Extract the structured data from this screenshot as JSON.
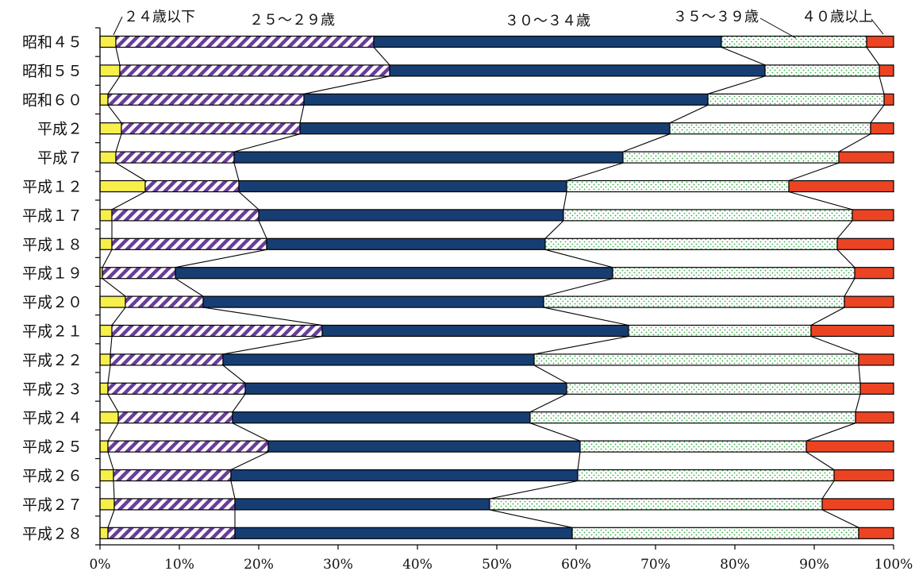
{
  "chart_data": {
    "type": "bar",
    "orientation": "horizontal",
    "stacked": "percent",
    "categories": [
      "昭和４５",
      "昭和５５",
      "昭和６０",
      "平成２",
      "平成７",
      "平成１２",
      "平成１７",
      "平成１８",
      "平成１９",
      "平成２０",
      "平成２１",
      "平成２２",
      "平成２３",
      "平成２４",
      "平成２５",
      "平成２６",
      "平成２７",
      "平成２８"
    ],
    "series": [
      {
        "name": "２４歳以下",
        "color": "#f7ef4a",
        "pattern": "solid",
        "values": [
          2.0,
          2.5,
          1.0,
          2.7,
          2.0,
          5.7,
          1.5,
          1.5,
          0.3,
          3.2,
          1.5,
          1.3,
          1.0,
          2.3,
          1.0,
          1.7,
          1.8,
          1.0
        ]
      },
      {
        "name": "２５～２９歳",
        "color": "#6a3d9a",
        "pattern": "diagonal-stripes",
        "values": [
          32.5,
          34.0,
          24.7,
          22.5,
          14.9,
          11.8,
          18.5,
          19.5,
          9.2,
          9.8,
          26.5,
          14.2,
          17.3,
          14.4,
          20.2,
          14.8,
          15.2,
          16.0
        ]
      },
      {
        "name": "３０～３４歳",
        "color": "#173e73",
        "pattern": "solid",
        "values": [
          43.8,
          47.3,
          50.9,
          46.6,
          49.0,
          41.3,
          38.4,
          35.1,
          55.1,
          42.9,
          38.6,
          39.2,
          40.5,
          37.5,
          39.3,
          43.7,
          32.1,
          42.5
        ]
      },
      {
        "name": "３５～３９歳",
        "color": "#35a845",
        "pattern": "dots",
        "values": [
          18.3,
          14.4,
          22.2,
          25.3,
          27.2,
          28.0,
          36.4,
          36.8,
          30.5,
          37.9,
          23.0,
          40.9,
          37.0,
          41.0,
          28.5,
          32.3,
          41.9,
          36.1
        ]
      },
      {
        "name": "４０歳以上",
        "color": "#ec4423",
        "pattern": "solid",
        "values": [
          3.4,
          1.8,
          1.2,
          2.9,
          6.9,
          13.2,
          5.2,
          7.1,
          4.9,
          6.2,
          10.4,
          4.4,
          4.2,
          4.8,
          11.0,
          7.5,
          9.0,
          4.4
        ]
      }
    ],
    "x_ticks": [
      "0%",
      "10%",
      "20%",
      "30%",
      "40%",
      "50%",
      "60%",
      "70%",
      "80%",
      "90%",
      "100%"
    ],
    "xlim": [
      0,
      100
    ],
    "legend": "top, labels with leader lines",
    "grid": false
  }
}
